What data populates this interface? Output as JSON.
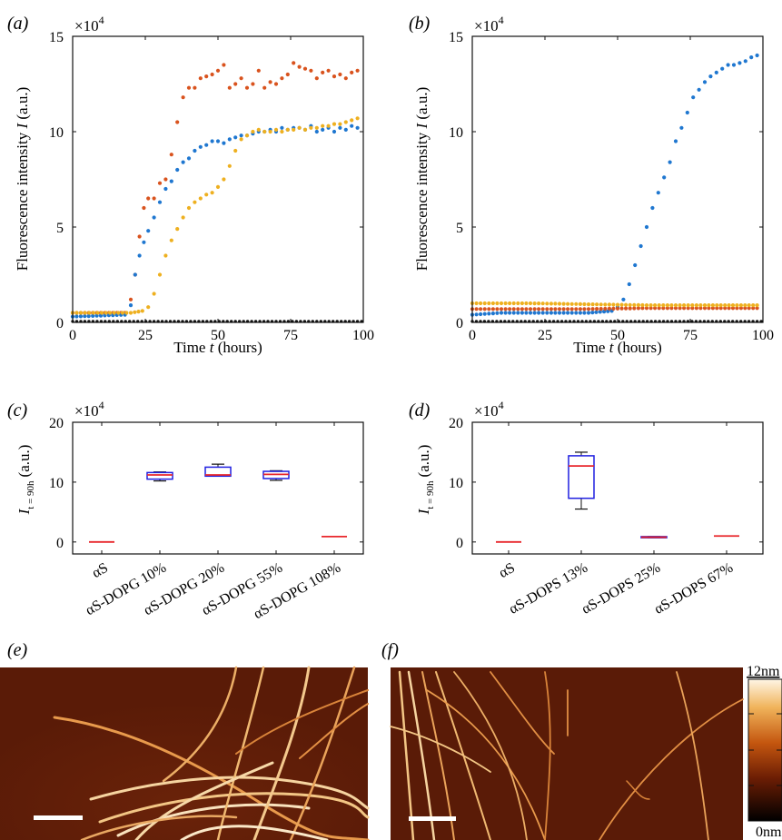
{
  "panels": {
    "a": {
      "label": "(a)",
      "exponent_base": "×10",
      "exponent_power": "4"
    },
    "b": {
      "label": "(b)",
      "exponent_base": "×10",
      "exponent_power": "4"
    },
    "c": {
      "label": "(c)",
      "exponent_base": "×10",
      "exponent_power": "4"
    },
    "d": {
      "label": "(d)",
      "exponent_base": "×10",
      "exponent_power": "4"
    },
    "e": {
      "label": "(e)"
    },
    "f": {
      "label": "(f)"
    }
  },
  "axes_text": {
    "ylabel_ab": "Fluorescence intensity",
    "ylabel_ab_var": "I",
    "ylabel_ab_unit": "(a.u.)",
    "xlabel": "Time",
    "xlabel_var": "t",
    "xlabel_unit": "(hours)",
    "ylabel_cd_var": "I",
    "ylabel_cd_sub": "t = 90h",
    "ylabel_cd_unit": "(a.u.)"
  },
  "colorbar": {
    "max_label": "12nm",
    "min_label": "0nm"
  },
  "colors": {
    "blue": "#1f77d0",
    "orange": "#d9531e",
    "yellow": "#eeb020",
    "black": "#111111",
    "box": "#1f1fe0",
    "median": "#e8262b"
  },
  "chart_data": [
    {
      "panel": "a",
      "type": "scatter",
      "xlabel": "Time t (hours)",
      "ylabel": "Fluorescence intensity I (a.u.)",
      "xlim": [
        0,
        100
      ],
      "ylim": [
        0,
        15
      ],
      "y_multiplier": "×10^4",
      "xticks": [
        0,
        25,
        50,
        75,
        100
      ],
      "yticks": [
        0,
        5,
        10,
        15
      ],
      "series": [
        {
          "color": "#d9531e",
          "points": [
            [
              0,
              0.5
            ],
            [
              18,
              0.5
            ],
            [
              20,
              1.2
            ],
            [
              21.5,
              2.5
            ],
            [
              23,
              4.5
            ],
            [
              24.5,
              6
            ],
            [
              26,
              6.5
            ],
            [
              28,
              6.5
            ],
            [
              30,
              7.3
            ],
            [
              32,
              7.5
            ],
            [
              34,
              8.8
            ],
            [
              36,
              10.5
            ],
            [
              38,
              11.8
            ],
            [
              40,
              12.3
            ],
            [
              42,
              12.3
            ],
            [
              44,
              12.8
            ],
            [
              46,
              12.9
            ],
            [
              48,
              13
            ],
            [
              50,
              13.2
            ],
            [
              52,
              13.5
            ],
            [
              54,
              12.3
            ],
            [
              56,
              12.5
            ],
            [
              58,
              12.8
            ],
            [
              60,
              12.3
            ],
            [
              62,
              12.5
            ],
            [
              64,
              13.2
            ],
            [
              66,
              12.3
            ],
            [
              68,
              12.6
            ],
            [
              70,
              12.5
            ],
            [
              72,
              12.8
            ],
            [
              74,
              13
            ],
            [
              76,
              13.6
            ],
            [
              78,
              13.4
            ],
            [
              80,
              13.3
            ],
            [
              82,
              13.2
            ],
            [
              84,
              12.8
            ],
            [
              86,
              13.1
            ],
            [
              88,
              13.2
            ],
            [
              90,
              12.9
            ],
            [
              92,
              13
            ],
            [
              94,
              12.8
            ],
            [
              96,
              13.1
            ],
            [
              98,
              13.2
            ]
          ]
        },
        {
          "color": "#1f77d0",
          "points": [
            [
              0,
              0.3
            ],
            [
              18,
              0.4
            ],
            [
              20,
              0.9
            ],
            [
              21.5,
              2.5
            ],
            [
              23,
              3.5
            ],
            [
              24.5,
              4.2
            ],
            [
              26,
              4.8
            ],
            [
              28,
              5.5
            ],
            [
              30,
              6.3
            ],
            [
              32,
              7
            ],
            [
              34,
              7.4
            ],
            [
              36,
              8
            ],
            [
              38,
              8.4
            ],
            [
              40,
              8.6
            ],
            [
              42,
              9
            ],
            [
              44,
              9.2
            ],
            [
              46,
              9.3
            ],
            [
              48,
              9.5
            ],
            [
              50,
              9.5
            ],
            [
              52,
              9.4
            ],
            [
              54,
              9.6
            ],
            [
              56,
              9.7
            ],
            [
              58,
              9.8
            ],
            [
              60,
              9.8
            ],
            [
              62,
              9.9
            ],
            [
              64,
              10
            ],
            [
              66,
              10
            ],
            [
              68,
              10.1
            ],
            [
              70,
              10
            ],
            [
              72,
              10.2
            ],
            [
              74,
              10.1
            ],
            [
              76,
              10.2
            ],
            [
              78,
              10.2
            ],
            [
              80,
              10.1
            ],
            [
              82,
              10.3
            ],
            [
              84,
              10
            ],
            [
              86,
              10.1
            ],
            [
              88,
              10.2
            ],
            [
              90,
              10
            ],
            [
              92,
              10.2
            ],
            [
              94,
              10.1
            ],
            [
              96,
              10.3
            ],
            [
              98,
              10.2
            ]
          ]
        },
        {
          "color": "#eeb020",
          "points": [
            [
              0,
              0.5
            ],
            [
              20,
              0.5
            ],
            [
              24,
              0.6
            ],
            [
              26,
              0.8
            ],
            [
              28,
              1.5
            ],
            [
              30,
              2.5
            ],
            [
              32,
              3.5
            ],
            [
              34,
              4.3
            ],
            [
              36,
              4.9
            ],
            [
              38,
              5.5
            ],
            [
              40,
              6
            ],
            [
              42,
              6.3
            ],
            [
              44,
              6.5
            ],
            [
              46,
              6.7
            ],
            [
              48,
              6.8
            ],
            [
              50,
              7.1
            ],
            [
              52,
              7.5
            ],
            [
              54,
              8.2
            ],
            [
              56,
              9
            ],
            [
              58,
              9.6
            ],
            [
              60,
              9.8
            ],
            [
              62,
              10
            ],
            [
              64,
              10.1
            ],
            [
              66,
              10
            ],
            [
              68,
              10
            ],
            [
              70,
              10.1
            ],
            [
              72,
              10
            ],
            [
              74,
              10.1
            ],
            [
              76,
              10.1
            ],
            [
              78,
              10.2
            ],
            [
              80,
              10.1
            ],
            [
              82,
              10.2
            ],
            [
              84,
              10.2
            ],
            [
              86,
              10.3
            ],
            [
              88,
              10.3
            ],
            [
              90,
              10.4
            ],
            [
              92,
              10.4
            ],
            [
              94,
              10.5
            ],
            [
              96,
              10.6
            ],
            [
              98,
              10.7
            ]
          ]
        },
        {
          "color": "#111111",
          "points": [
            [
              0,
              0.05
            ],
            [
              100,
              0.05
            ]
          ]
        }
      ]
    },
    {
      "panel": "b",
      "type": "scatter",
      "xlabel": "Time t (hours)",
      "ylabel": "Fluorescence intensity I (a.u.)",
      "xlim": [
        0,
        100
      ],
      "ylim": [
        0,
        15
      ],
      "y_multiplier": "×10^4",
      "xticks": [
        0,
        25,
        50,
        75,
        100
      ],
      "yticks": [
        0,
        5,
        10,
        15
      ],
      "series": [
        {
          "color": "#1f77d0",
          "points": [
            [
              0,
              0.4
            ],
            [
              10,
              0.5
            ],
            [
              20,
              0.5
            ],
            [
              30,
              0.5
            ],
            [
              40,
              0.5
            ],
            [
              48,
              0.6
            ],
            [
              50,
              0.8
            ],
            [
              52,
              1.2
            ],
            [
              54,
              2
            ],
            [
              56,
              3
            ],
            [
              58,
              4
            ],
            [
              60,
              5
            ],
            [
              62,
              6
            ],
            [
              64,
              6.8
            ],
            [
              66,
              7.6
            ],
            [
              68,
              8.4
            ],
            [
              70,
              9.5
            ],
            [
              72,
              10.2
            ],
            [
              74,
              11
            ],
            [
              76,
              11.8
            ],
            [
              78,
              12.2
            ],
            [
              80,
              12.6
            ],
            [
              82,
              12.9
            ],
            [
              84,
              13.1
            ],
            [
              86,
              13.3
            ],
            [
              88,
              13.5
            ],
            [
              90,
              13.5
            ],
            [
              92,
              13.6
            ],
            [
              94,
              13.7
            ],
            [
              96,
              13.9
            ],
            [
              98,
              14
            ]
          ]
        },
        {
          "color": "#d9531e",
          "points": [
            [
              0,
              0.7
            ],
            [
              20,
              0.7
            ],
            [
              40,
              0.7
            ],
            [
              60,
              0.75
            ],
            [
              80,
              0.75
            ],
            [
              98,
              0.75
            ]
          ]
        },
        {
          "color": "#eeb020",
          "points": [
            [
              0,
              1
            ],
            [
              20,
              1
            ],
            [
              40,
              0.95
            ],
            [
              60,
              0.9
            ],
            [
              80,
              0.9
            ],
            [
              98,
              0.9
            ]
          ]
        },
        {
          "color": "#111111",
          "points": [
            [
              0,
              0.05
            ],
            [
              100,
              0.05
            ]
          ]
        }
      ]
    },
    {
      "panel": "c",
      "type": "box",
      "ylabel": "I t = 90h (a.u.)",
      "ylim": [
        -2,
        20
      ],
      "yticks": [
        0,
        10,
        20
      ],
      "y_multiplier": "×10^4",
      "categories": [
        "αS",
        "αS-DOPG 10%",
        "αS-DOPG 20%",
        "αS-DOPG 55%",
        "αS-DOPG 108%"
      ],
      "boxes": [
        {
          "min": 0,
          "q1": 0,
          "median": 0,
          "q3": 0,
          "max": 0
        },
        {
          "min": 10.2,
          "q1": 10.5,
          "median": 11.2,
          "q3": 11.6,
          "max": 11.7
        },
        {
          "min": 11,
          "q1": 11,
          "median": 11.2,
          "q3": 12.5,
          "max": 13
        },
        {
          "min": 10.3,
          "q1": 10.6,
          "median": 11.3,
          "q3": 11.8,
          "max": 11.9
        },
        {
          "min": 0.9,
          "q1": 0.9,
          "median": 0.9,
          "q3": 0.9,
          "max": 0.9
        }
      ]
    },
    {
      "panel": "d",
      "type": "box",
      "ylabel": "I t = 90h (a.u.)",
      "ylim": [
        -2,
        20
      ],
      "yticks": [
        0,
        10,
        20
      ],
      "y_multiplier": "×10^4",
      "categories": [
        "αS",
        "αS-DOPS 13%",
        "αS-DOPS 25%",
        "αS-DOPS 67%"
      ],
      "boxes": [
        {
          "min": 0,
          "q1": 0,
          "median": 0,
          "q3": 0,
          "max": 0
        },
        {
          "min": 5.5,
          "q1": 7.3,
          "median": 12.7,
          "q3": 14.4,
          "max": 15
        },
        {
          "min": 0.7,
          "q1": 0.7,
          "median": 0.8,
          "q3": 0.9,
          "max": 0.9
        },
        {
          "min": 1,
          "q1": 1,
          "median": 1,
          "q3": 1,
          "max": 1
        }
      ]
    }
  ]
}
